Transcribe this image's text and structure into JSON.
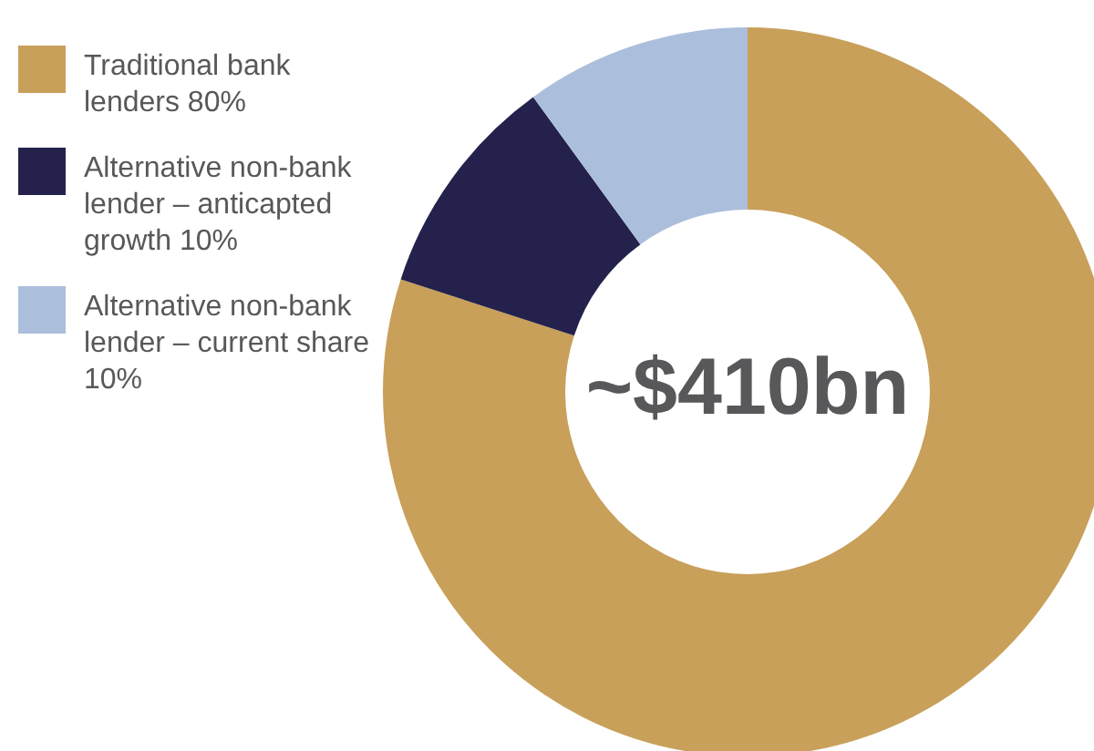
{
  "chart_data": {
    "type": "donut",
    "categories": [
      "Traditional bank lenders 80%",
      "Alternative non-bank lender – anticapted growth 10%",
      "Alternative non-bank lender – current share 10%"
    ],
    "values": [
      80,
      10,
      10
    ],
    "colors": [
      "#c8a05a",
      "#24224c",
      "#abbfdc"
    ],
    "legend": "top left",
    "annotations": [
      "~$410bn"
    ]
  }
}
